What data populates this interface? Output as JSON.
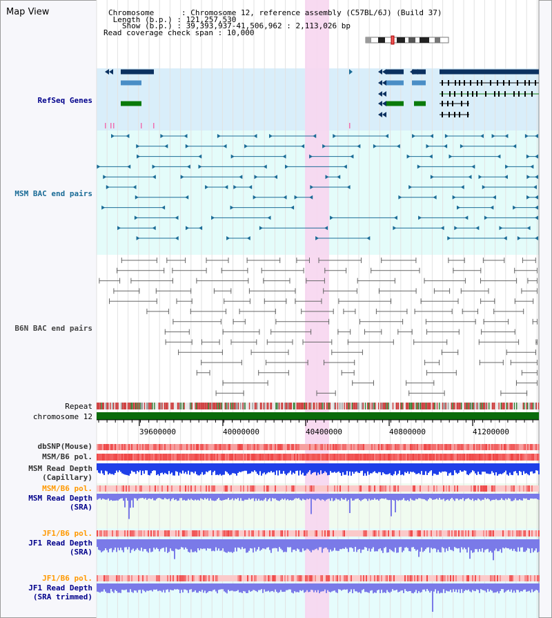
{
  "title": "Map View",
  "info": {
    "chromosome": "Chromosome      : Chromosome 12, reference assembly (C57BL/6J) (Build 37)",
    "length": " Length (b.p.) : 121,257,530",
    "show": "   Show (b.p.) : 39,393,937-41,506,962 : 2,113,026 bp",
    "coverage": "Read coverage check span : 10,000"
  },
  "tracks": {
    "refseq": "RefSeq Genes",
    "msm_bac": "MSM BAC end pairs",
    "b6n_bac": "B6N BAC end pairs",
    "repeat": "Repeat",
    "chromosome": "chromosome 12",
    "dbsnp": "dbSNP(Mouse)",
    "msm_pol1": "MSM/B6 pol.",
    "msm_depth_cap_1": "MSM Read Depth",
    "msm_depth_cap_2": "(Capillary)",
    "msm_pol2": "MSM/B6 pol.",
    "msm_depth_sra_1": "MSM Read Depth",
    "msm_depth_sra_2": "(SRA)",
    "jf1_pol1": "JF1/B6 pol.",
    "jf1_depth_sra_1": "JF1 Read Depth",
    "jf1_depth_sra_2": "(SRA)",
    "jf1_pol2": "JF1/B6 pol.",
    "jf1_depth_trim_1": "JF1 Read Depth",
    "jf1_depth_trim_2": "(SRA trimmed)"
  },
  "axis_ticks": [
    "39600000",
    "40000000",
    "40400000",
    "40800000",
    "41200000"
  ],
  "colors": {
    "refseq_bg": "#d9eefa",
    "msm_bg": "#e4fcfa",
    "highlight": "#f7d6f0",
    "navy": "#0b3160",
    "lightblue": "#4a8ec6",
    "green": "#0a7a0a",
    "msm_line": "#1a6b96",
    "b6n_line": "#666666",
    "repeat_red": "#cc3333",
    "chrom_green": "#0b6b0b",
    "depth_blue": "#1f3fe8",
    "depth_sra": "#7a7ae8",
    "pol_red": "#ee4444",
    "orange_label": "#ff9900",
    "navy_label": "#00008b"
  }
}
